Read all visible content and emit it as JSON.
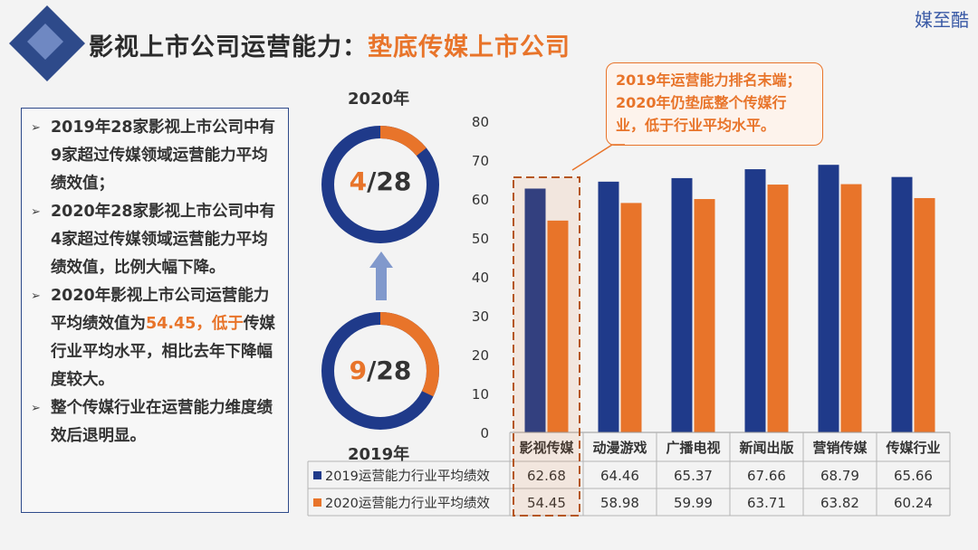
{
  "brand": "媒至酷",
  "title": {
    "main": "影视上市公司运营能力：",
    "accent": "垫底传媒上市公司"
  },
  "bullets": [
    {
      "parts": [
        {
          "text": "2019年28家影视上市公司中有9家超过传媒领域运营能力平均绩效值；",
          "hl": false
        }
      ]
    },
    {
      "parts": [
        {
          "text": "2020年28家影视上市公司中有4家超过传媒领域运营能力平均绩效值，比例大幅下降。",
          "hl": false
        }
      ]
    },
    {
      "parts": [
        {
          "text": "2020年影视上市公司运营能力平均绩效值为",
          "hl": false
        },
        {
          "text": "54.45，低于",
          "hl": true
        },
        {
          "text": "传媒行业平均水平，相比去年下降幅度较大。",
          "hl": false
        }
      ]
    },
    {
      "parts": [
        {
          "text": "整个传媒行业在运营能力维度绩效后退明显。",
          "hl": false
        }
      ]
    }
  ],
  "donuts": {
    "top": {
      "year": "2020年",
      "numerator": "4",
      "denominator": "/28",
      "value": 4,
      "total": 28
    },
    "bottom": {
      "year": "2019年",
      "numerator": "9",
      "denominator": "/28",
      "value": 9,
      "total": 28
    }
  },
  "callout": {
    "lines": [
      "2019年运营能力排名末端；",
      "2020年仍垫底整个传媒行",
      "业，低于行业平均水平。"
    ]
  },
  "colors": {
    "blue": "#1f3a8a",
    "orange": "#e8742a",
    "accent": "#e8742a"
  },
  "chart_data": {
    "type": "bar",
    "categories": [
      "影视传媒",
      "动漫游戏",
      "广播电视",
      "新闻出版",
      "营销传媒",
      "传媒行业"
    ],
    "series": [
      {
        "name": "2019运营能力行业平均绩效",
        "values": [
          62.68,
          64.46,
          65.37,
          67.66,
          68.79,
          65.66
        ]
      },
      {
        "name": "2020运营能力行业平均绩效",
        "values": [
          54.45,
          58.98,
          59.99,
          63.71,
          63.82,
          60.24
        ]
      }
    ],
    "ylim": [
      0,
      80
    ],
    "yticks": [
      0,
      10,
      20,
      30,
      40,
      50,
      60,
      70,
      80
    ],
    "table_values": [
      [
        "62.68",
        "64.46",
        "65.37",
        "67.66",
        "68.79",
        "65.66"
      ],
      [
        "54.45",
        "58.98",
        "59.99",
        "63.71",
        "63.82",
        "60.24"
      ]
    ]
  }
}
